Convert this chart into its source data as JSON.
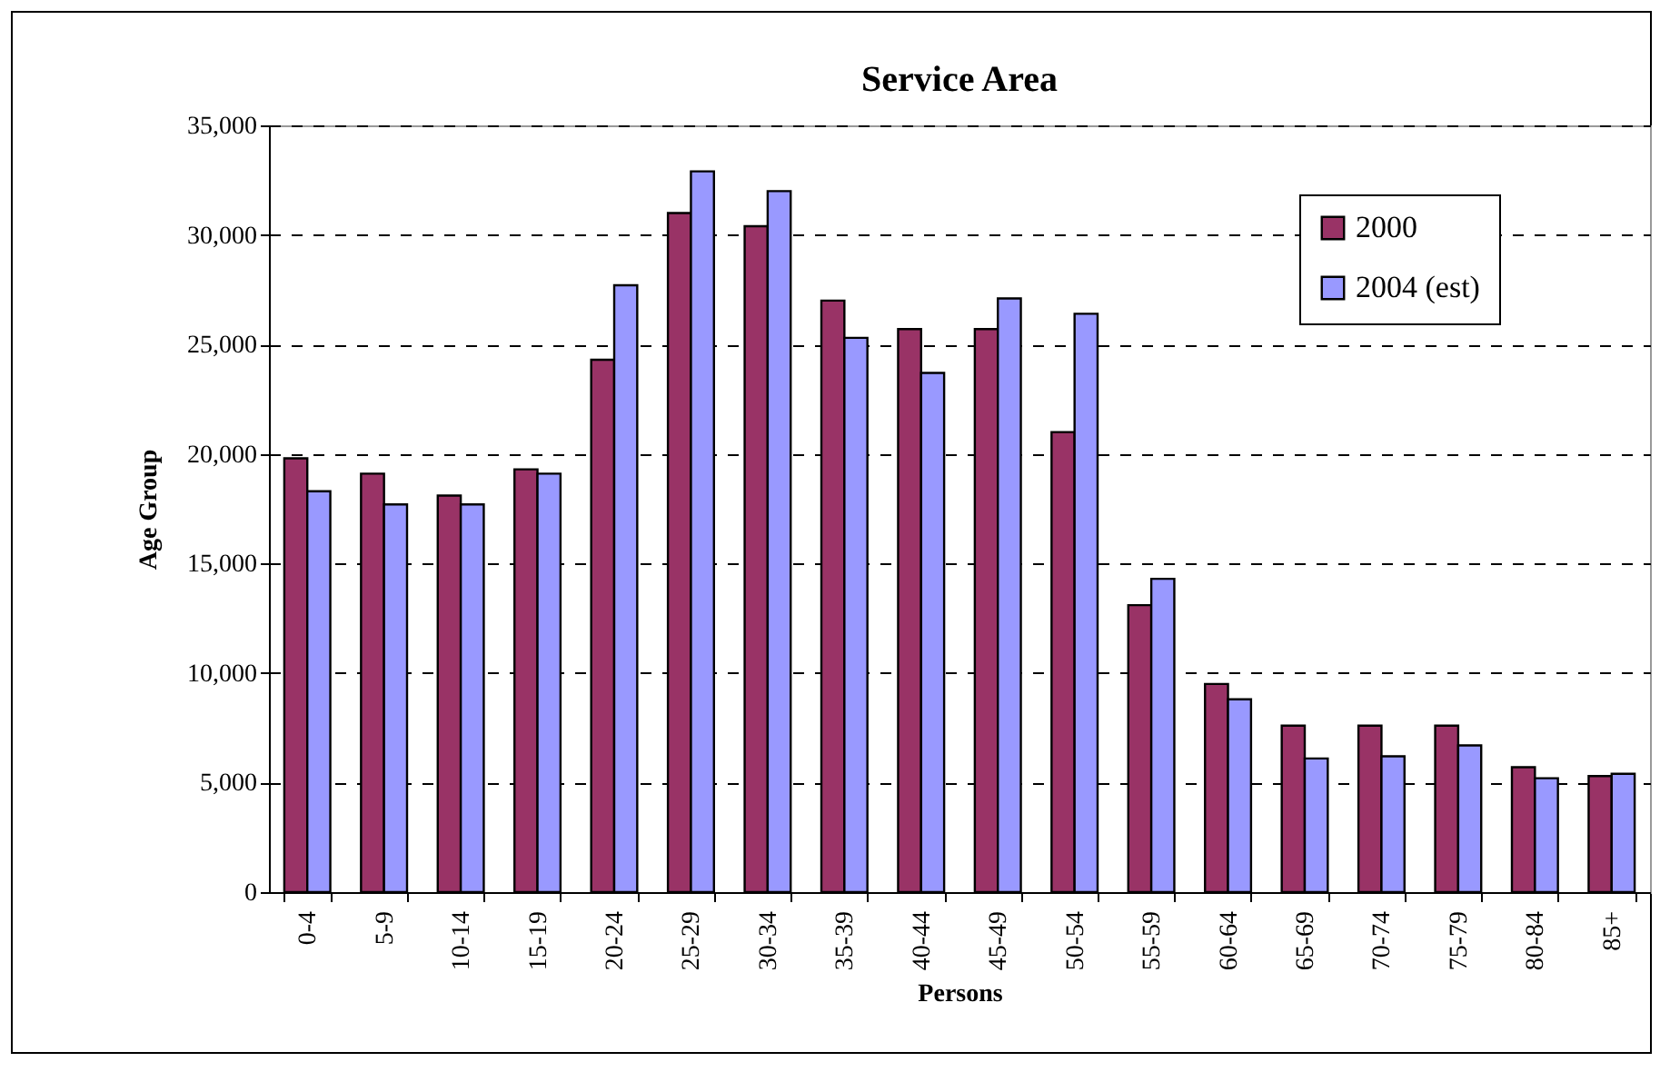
{
  "chart_data": {
    "type": "bar",
    "title": "Service Area",
    "xlabel": "Persons",
    "ylabel": "Age Group",
    "categories": [
      "0-4",
      "5-9",
      "10-14",
      "15-19",
      "20-24",
      "25-29",
      "30-34",
      "35-39",
      "40-44",
      "45-49",
      "50-54",
      "55-59",
      "60-64",
      "65-69",
      "70-74",
      "75-79",
      "80-84",
      "85+"
    ],
    "series": [
      {
        "name": "2000",
        "color": "#993366",
        "values": [
          19800,
          19100,
          18100,
          19300,
          24300,
          31000,
          30400,
          27000,
          25700,
          25700,
          21000,
          13100,
          9500,
          7600,
          7600,
          7600,
          5700,
          5300
        ]
      },
      {
        "name": "2004 (est)",
        "color": "#9999ff",
        "values": [
          18300,
          17700,
          17700,
          19100,
          27700,
          32900,
          32000,
          25300,
          23700,
          27100,
          26400,
          14300,
          8800,
          6100,
          6200,
          6700,
          5200,
          5400
        ]
      }
    ],
    "ylim": [
      0,
      35000
    ],
    "yticks": [
      {
        "value": 0,
        "label": "0"
      },
      {
        "value": 5000,
        "label": "5,000"
      },
      {
        "value": 10000,
        "label": "10,000"
      },
      {
        "value": 15000,
        "label": "15,000"
      },
      {
        "value": 20000,
        "label": "20,000"
      },
      {
        "value": 25000,
        "label": "25,000"
      },
      {
        "value": 30000,
        "label": "30,000"
      },
      {
        "value": 35000,
        "label": "35,000"
      }
    ],
    "grid": "y",
    "legend": "top right"
  }
}
